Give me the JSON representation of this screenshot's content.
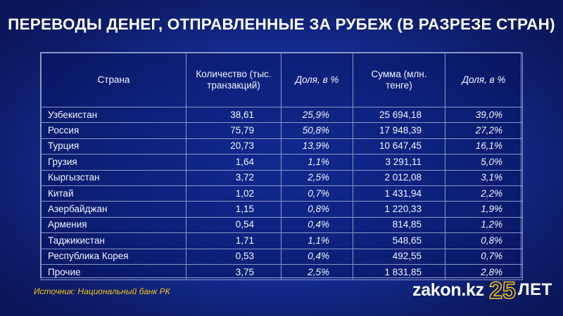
{
  "title": "ПЕРЕВОДЫ ДЕНЕГ, ОТПРАВЛЕННЫЕ ЗА РУБЕЖ (В РАЗРЕЗЕ СТРАН)",
  "table": {
    "headers": {
      "country": "Страна",
      "count": "Количество (тыс. транзакций)",
      "count_share": "Доля, в %",
      "amount": "Сумма (млн. тенге)",
      "amount_share": "Доля, в %"
    },
    "rows": [
      {
        "country": "Узбекистан",
        "count": "38,61",
        "count_share": "25,9%",
        "amount": "25 694,18",
        "amount_share": "39,0%"
      },
      {
        "country": "Россия",
        "count": "75,79",
        "count_share": "50,8%",
        "amount": "17 948,39",
        "amount_share": "27,2%"
      },
      {
        "country": "Турция",
        "count": "20,73",
        "count_share": "13,9%",
        "amount": "10 647,45",
        "amount_share": "16,1%"
      },
      {
        "country": "Грузия",
        "count": "1,64",
        "count_share": "1,1%",
        "amount": "3 291,11",
        "amount_share": "5,0%"
      },
      {
        "country": "Кыргызстан",
        "count": "3,72",
        "count_share": "2,5%",
        "amount": "2 012,08",
        "amount_share": "3,1%"
      },
      {
        "country": "Китай",
        "count": "1,02",
        "count_share": "0,7%",
        "amount": "1 431,94",
        "amount_share": "2,2%"
      },
      {
        "country": "Азербайджан",
        "count": "1,15",
        "count_share": "0,8%",
        "amount": "1 220,33",
        "amount_share": "1,9%"
      },
      {
        "country": "Армения",
        "count": "0,54",
        "count_share": "0,4%",
        "amount": "814,85",
        "amount_share": "1,2%"
      },
      {
        "country": "Таджикистан",
        "count": "1,71",
        "count_share": "1,1%",
        "amount": "548,65",
        "amount_share": "0,8%"
      },
      {
        "country": "Республика Корея",
        "count": "0,53",
        "count_share": "0,4%",
        "amount": "492,55",
        "amount_share": "0,7%"
      },
      {
        "country": "Прочие",
        "count": "3,75",
        "count_share": "2,5%",
        "amount": "1 831,85",
        "amount_share": "2,8%"
      }
    ]
  },
  "source": "Источник: Национальный банк РК",
  "brand": {
    "name": "zakon.kz",
    "number": "25",
    "suffix": "ЛЕТ",
    "accent_color": "#f4c318"
  }
}
